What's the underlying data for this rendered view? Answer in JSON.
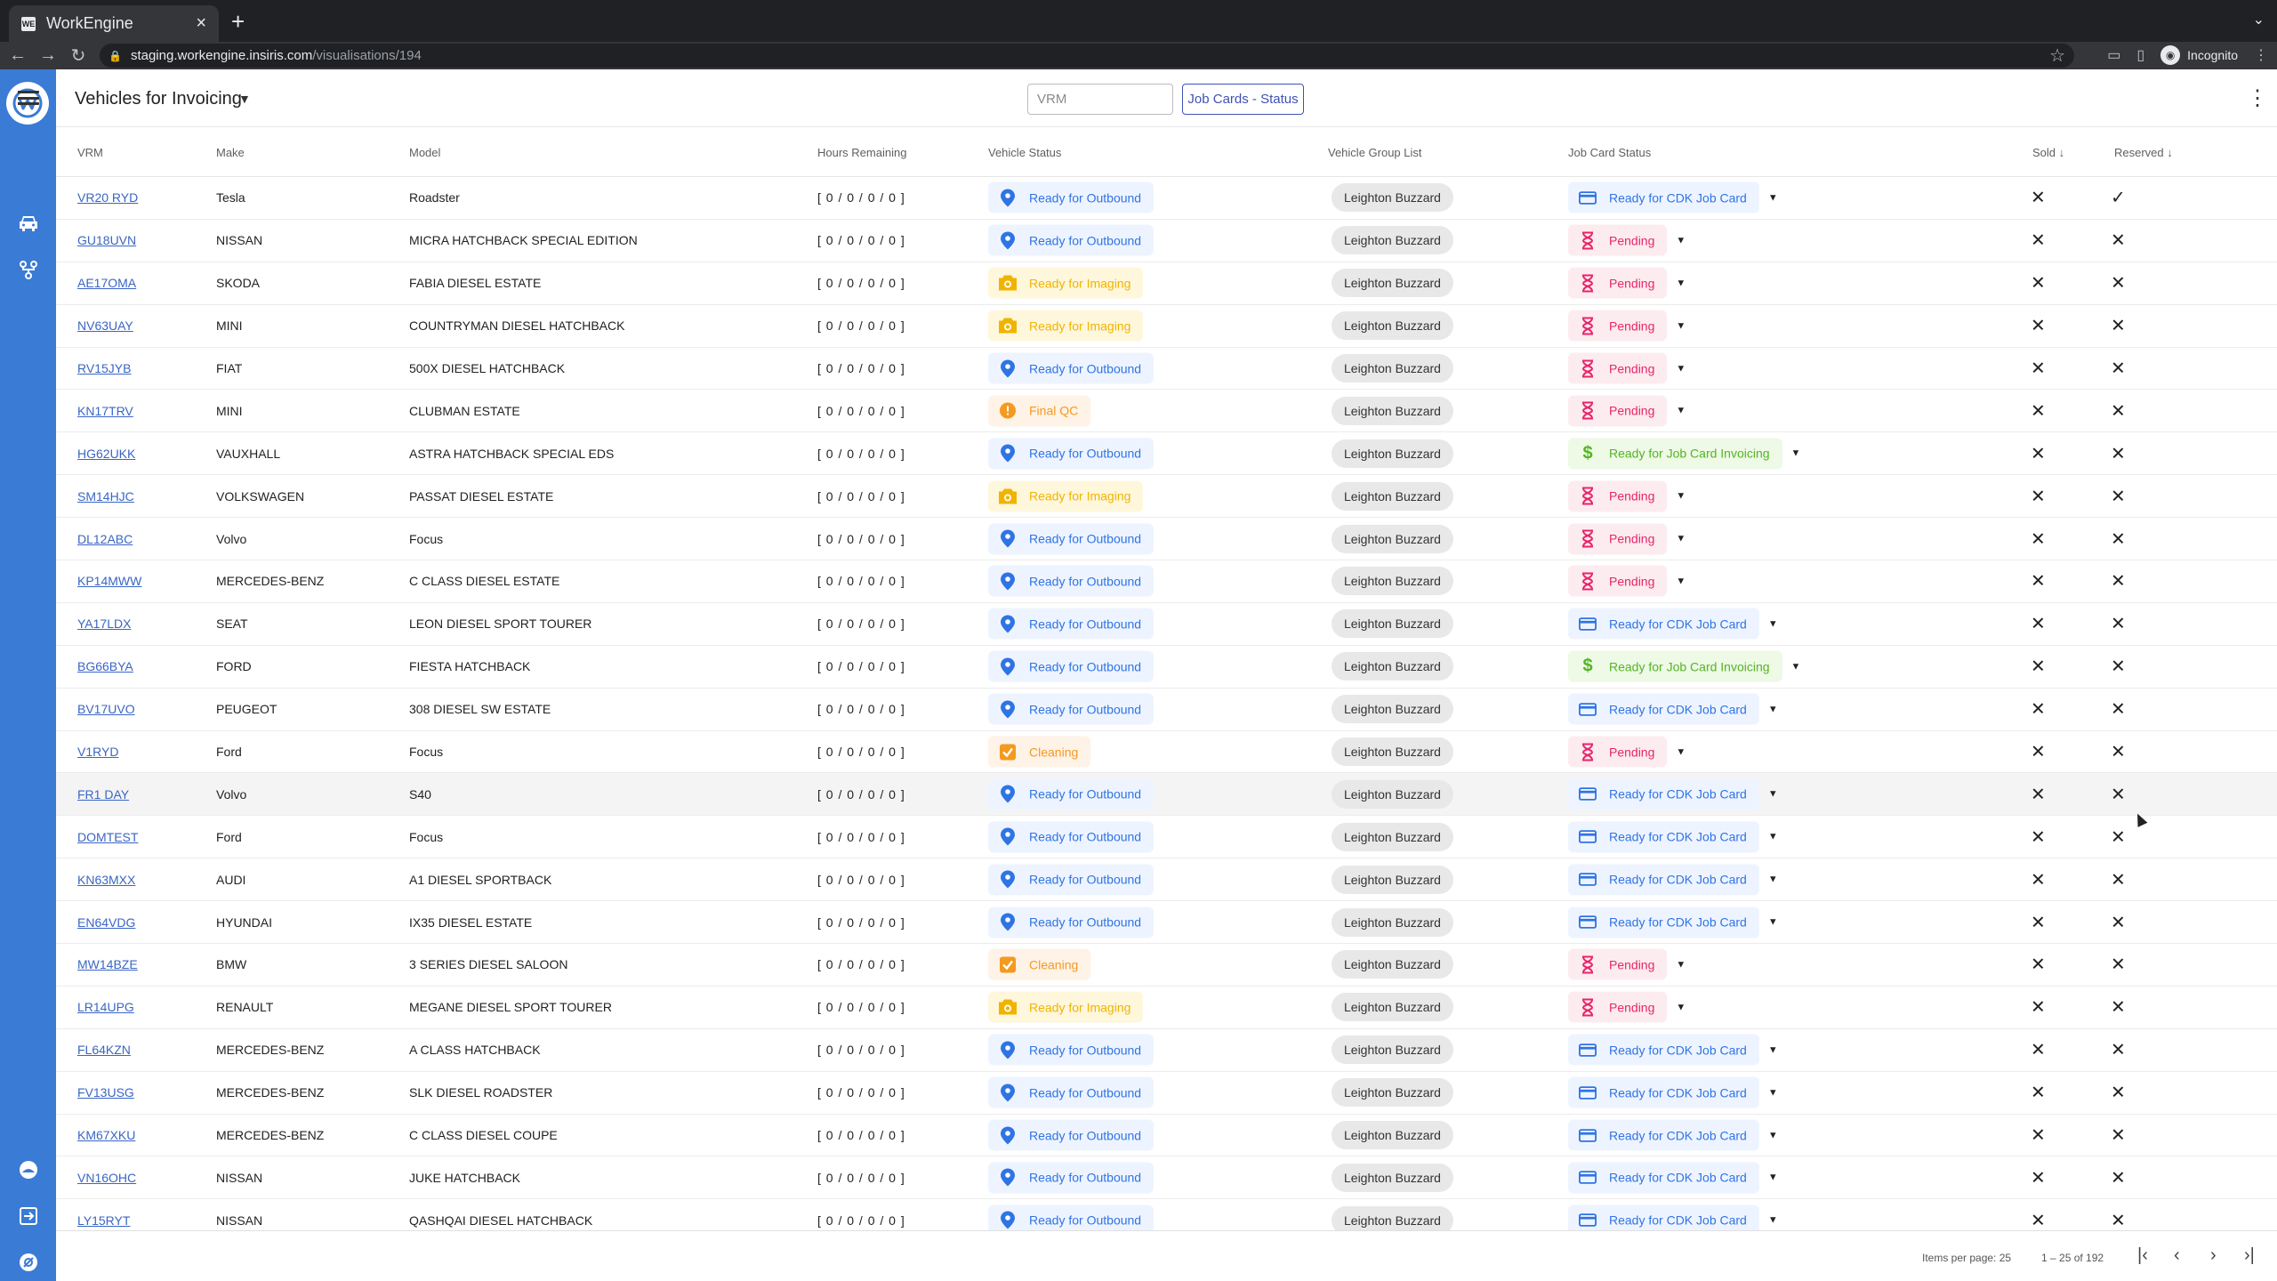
{
  "browser": {
    "tab_title": "WorkEngine",
    "tab_favicon": "WE",
    "url_host": "staging.workengine.insiris.com",
    "url_path": "/visualisations/194",
    "profile_label": "Incognito"
  },
  "header": {
    "title": "Vehicles for Invoicing",
    "vrm_placeholder": "VRM",
    "status_button": "Job Cards - Status"
  },
  "columns": {
    "vrm": "VRM",
    "make": "Make",
    "model": "Model",
    "hours": "Hours Remaining",
    "vehicle_status": "Vehicle Status",
    "group": "Vehicle Group List",
    "job_status": "Job Card Status",
    "sold": "Sold",
    "reserved": "Reserved"
  },
  "rows": [
    {
      "vrm": "VR20 RYD",
      "make": "Tesla",
      "model": "Roadster",
      "hours": "[ 0 / 0 / 0 / 0 ]",
      "vstatus": "Ready for Outbound",
      "vtype": "outbound",
      "group": "Leighton Buzzard",
      "jstatus": "Ready for CDK Job Card",
      "jtype": "cdk",
      "sold": "✕",
      "reserved": "✓"
    },
    {
      "vrm": "GU18UVN",
      "make": "NISSAN",
      "model": "MICRA HATCHBACK SPECIAL EDITION",
      "hours": "[ 0 / 0 / 0 / 0 ]",
      "vstatus": "Ready for Outbound",
      "vtype": "outbound",
      "group": "Leighton Buzzard",
      "jstatus": "Pending",
      "jtype": "pending",
      "sold": "✕",
      "reserved": "✕"
    },
    {
      "vrm": "AE17OMA",
      "make": "SKODA",
      "model": "FABIA DIESEL ESTATE",
      "hours": "[ 0 / 0 / 0 / 0 ]",
      "vstatus": "Ready for Imaging",
      "vtype": "imaging",
      "group": "Leighton Buzzard",
      "jstatus": "Pending",
      "jtype": "pending",
      "sold": "✕",
      "reserved": "✕"
    },
    {
      "vrm": "NV63UAY",
      "make": "MINI",
      "model": "COUNTRYMAN DIESEL HATCHBACK",
      "hours": "[ 0 / 0 / 0 / 0 ]",
      "vstatus": "Ready for Imaging",
      "vtype": "imaging",
      "group": "Leighton Buzzard",
      "jstatus": "Pending",
      "jtype": "pending",
      "sold": "✕",
      "reserved": "✕"
    },
    {
      "vrm": "RV15JYB",
      "make": "FIAT",
      "model": "500X DIESEL HATCHBACK",
      "hours": "[ 0 / 0 / 0 / 0 ]",
      "vstatus": "Ready for Outbound",
      "vtype": "outbound",
      "group": "Leighton Buzzard",
      "jstatus": "Pending",
      "jtype": "pending",
      "sold": "✕",
      "reserved": "✕"
    },
    {
      "vrm": "KN17TRV",
      "make": "MINI",
      "model": "CLUBMAN ESTATE",
      "hours": "[ 0 / 0 / 0 / 0 ]",
      "vstatus": "Final QC",
      "vtype": "qc",
      "group": "Leighton Buzzard",
      "jstatus": "Pending",
      "jtype": "pending",
      "sold": "✕",
      "reserved": "✕"
    },
    {
      "vrm": "HG62UKK",
      "make": "VAUXHALL",
      "model": "ASTRA HATCHBACK SPECIAL EDS",
      "hours": "[ 0 / 0 / 0 / 0 ]",
      "vstatus": "Ready for Outbound",
      "vtype": "outbound",
      "group": "Leighton Buzzard",
      "jstatus": "Ready for Job Card Invoicing",
      "jtype": "invoice",
      "sold": "✕",
      "reserved": "✕"
    },
    {
      "vrm": "SM14HJC",
      "make": "VOLKSWAGEN",
      "model": "PASSAT DIESEL ESTATE",
      "hours": "[ 0 / 0 / 0 / 0 ]",
      "vstatus": "Ready for Imaging",
      "vtype": "imaging",
      "group": "Leighton Buzzard",
      "jstatus": "Pending",
      "jtype": "pending",
      "sold": "✕",
      "reserved": "✕"
    },
    {
      "vrm": "DL12ABC",
      "make": "Volvo",
      "model": "Focus",
      "hours": "[ 0 / 0 / 0 / 0 ]",
      "vstatus": "Ready for Outbound",
      "vtype": "outbound",
      "group": "Leighton Buzzard",
      "jstatus": "Pending",
      "jtype": "pending",
      "sold": "✕",
      "reserved": "✕"
    },
    {
      "vrm": "KP14MWW",
      "make": "MERCEDES-BENZ",
      "model": "C CLASS DIESEL ESTATE",
      "hours": "[ 0 / 0 / 0 / 0 ]",
      "vstatus": "Ready for Outbound",
      "vtype": "outbound",
      "group": "Leighton Buzzard",
      "jstatus": "Pending",
      "jtype": "pending",
      "sold": "✕",
      "reserved": "✕"
    },
    {
      "vrm": "YA17LDX",
      "make": "SEAT",
      "model": "LEON DIESEL SPORT TOURER",
      "hours": "[ 0 / 0 / 0 / 0 ]",
      "vstatus": "Ready for Outbound",
      "vtype": "outbound",
      "group": "Leighton Buzzard",
      "jstatus": "Ready for CDK Job Card",
      "jtype": "cdk",
      "sold": "✕",
      "reserved": "✕"
    },
    {
      "vrm": "BG66BYA",
      "make": "FORD",
      "model": "FIESTA HATCHBACK",
      "hours": "[ 0 / 0 / 0 / 0 ]",
      "vstatus": "Ready for Outbound",
      "vtype": "outbound",
      "group": "Leighton Buzzard",
      "jstatus": "Ready for Job Card Invoicing",
      "jtype": "invoice",
      "sold": "✕",
      "reserved": "✕"
    },
    {
      "vrm": "BV17UVO",
      "make": "PEUGEOT",
      "model": "308 DIESEL SW ESTATE",
      "hours": "[ 0 / 0 / 0 / 0 ]",
      "vstatus": "Ready for Outbound",
      "vtype": "outbound",
      "group": "Leighton Buzzard",
      "jstatus": "Ready for CDK Job Card",
      "jtype": "cdk",
      "sold": "✕",
      "reserved": "✕"
    },
    {
      "vrm": "V1RYD",
      "make": "Ford",
      "model": "Focus",
      "hours": "[ 0 / 0 / 0 / 0 ]",
      "vstatus": "Cleaning",
      "vtype": "cleaning",
      "group": "Leighton Buzzard",
      "jstatus": "Pending",
      "jtype": "pending",
      "sold": "✕",
      "reserved": "✕"
    },
    {
      "vrm": "FR1 DAY",
      "make": "Volvo",
      "model": "S40",
      "hours": "[ 0 / 0 / 0 / 0 ]",
      "vstatus": "Ready for Outbound",
      "vtype": "outbound",
      "group": "Leighton Buzzard",
      "jstatus": "Ready for CDK Job Card",
      "jtype": "cdk",
      "sold": "✕",
      "reserved": "✕"
    },
    {
      "vrm": "DOMTEST",
      "make": "Ford",
      "model": "Focus",
      "hours": "[ 0 / 0 / 0 / 0 ]",
      "vstatus": "Ready for Outbound",
      "vtype": "outbound",
      "group": "Leighton Buzzard",
      "jstatus": "Ready for CDK Job Card",
      "jtype": "cdk",
      "sold": "✕",
      "reserved": "✕"
    },
    {
      "vrm": "KN63MXX",
      "make": "AUDI",
      "model": "A1 DIESEL SPORTBACK",
      "hours": "[ 0 / 0 / 0 / 0 ]",
      "vstatus": "Ready for Outbound",
      "vtype": "outbound",
      "group": "Leighton Buzzard",
      "jstatus": "Ready for CDK Job Card",
      "jtype": "cdk",
      "sold": "✕",
      "reserved": "✕"
    },
    {
      "vrm": "EN64VDG",
      "make": "HYUNDAI",
      "model": "IX35 DIESEL ESTATE",
      "hours": "[ 0 / 0 / 0 / 0 ]",
      "vstatus": "Ready for Outbound",
      "vtype": "outbound",
      "group": "Leighton Buzzard",
      "jstatus": "Ready for CDK Job Card",
      "jtype": "cdk",
      "sold": "✕",
      "reserved": "✕"
    },
    {
      "vrm": "MW14BZE",
      "make": "BMW",
      "model": "3 SERIES DIESEL SALOON",
      "hours": "[ 0 / 0 / 0 / 0 ]",
      "vstatus": "Cleaning",
      "vtype": "cleaning",
      "group": "Leighton Buzzard",
      "jstatus": "Pending",
      "jtype": "pending",
      "sold": "✕",
      "reserved": "✕"
    },
    {
      "vrm": "LR14UPG",
      "make": "RENAULT",
      "model": "MEGANE DIESEL SPORT TOURER",
      "hours": "[ 0 / 0 / 0 / 0 ]",
      "vstatus": "Ready for Imaging",
      "vtype": "imaging",
      "group": "Leighton Buzzard",
      "jstatus": "Pending",
      "jtype": "pending",
      "sold": "✕",
      "reserved": "✕"
    },
    {
      "vrm": "FL64KZN",
      "make": "MERCEDES-BENZ",
      "model": "A CLASS HATCHBACK",
      "hours": "[ 0 / 0 / 0 / 0 ]",
      "vstatus": "Ready for Outbound",
      "vtype": "outbound",
      "group": "Leighton Buzzard",
      "jstatus": "Ready for CDK Job Card",
      "jtype": "cdk",
      "sold": "✕",
      "reserved": "✕"
    },
    {
      "vrm": "FV13USG",
      "make": "MERCEDES-BENZ",
      "model": "SLK DIESEL ROADSTER",
      "hours": "[ 0 / 0 / 0 / 0 ]",
      "vstatus": "Ready for Outbound",
      "vtype": "outbound",
      "group": "Leighton Buzzard",
      "jstatus": "Ready for CDK Job Card",
      "jtype": "cdk",
      "sold": "✕",
      "reserved": "✕"
    },
    {
      "vrm": "KM67XKU",
      "make": "MERCEDES-BENZ",
      "model": "C CLASS DIESEL COUPE",
      "hours": "[ 0 / 0 / 0 / 0 ]",
      "vstatus": "Ready for Outbound",
      "vtype": "outbound",
      "group": "Leighton Buzzard",
      "jstatus": "Ready for CDK Job Card",
      "jtype": "cdk",
      "sold": "✕",
      "reserved": "✕"
    },
    {
      "vrm": "VN16OHC",
      "make": "NISSAN",
      "model": "JUKE HATCHBACK",
      "hours": "[ 0 / 0 / 0 / 0 ]",
      "vstatus": "Ready for Outbound",
      "vtype": "outbound",
      "group": "Leighton Buzzard",
      "jstatus": "Ready for CDK Job Card",
      "jtype": "cdk",
      "sold": "✕",
      "reserved": "✕"
    },
    {
      "vrm": "LY15RYT",
      "make": "NISSAN",
      "model": "QASHQAI DIESEL HATCHBACK",
      "hours": "[ 0 / 0 / 0 / 0 ]",
      "vstatus": "Ready for Outbound",
      "vtype": "outbound",
      "group": "Leighton Buzzard",
      "jstatus": "Ready for CDK Job Card",
      "jtype": "cdk",
      "sold": "✕",
      "reserved": "✕"
    }
  ],
  "footer": {
    "items_per_page": "Items per page: 25",
    "range": "1 – 25 of 192"
  },
  "colors": {
    "sidebar": "#3a7bd5",
    "outbound": "#2f74e4",
    "imaging": "#f0b400",
    "qc": "#f39a1f",
    "pending": "#e8246b",
    "invoice": "#55b426",
    "link": "#3a66c4"
  }
}
